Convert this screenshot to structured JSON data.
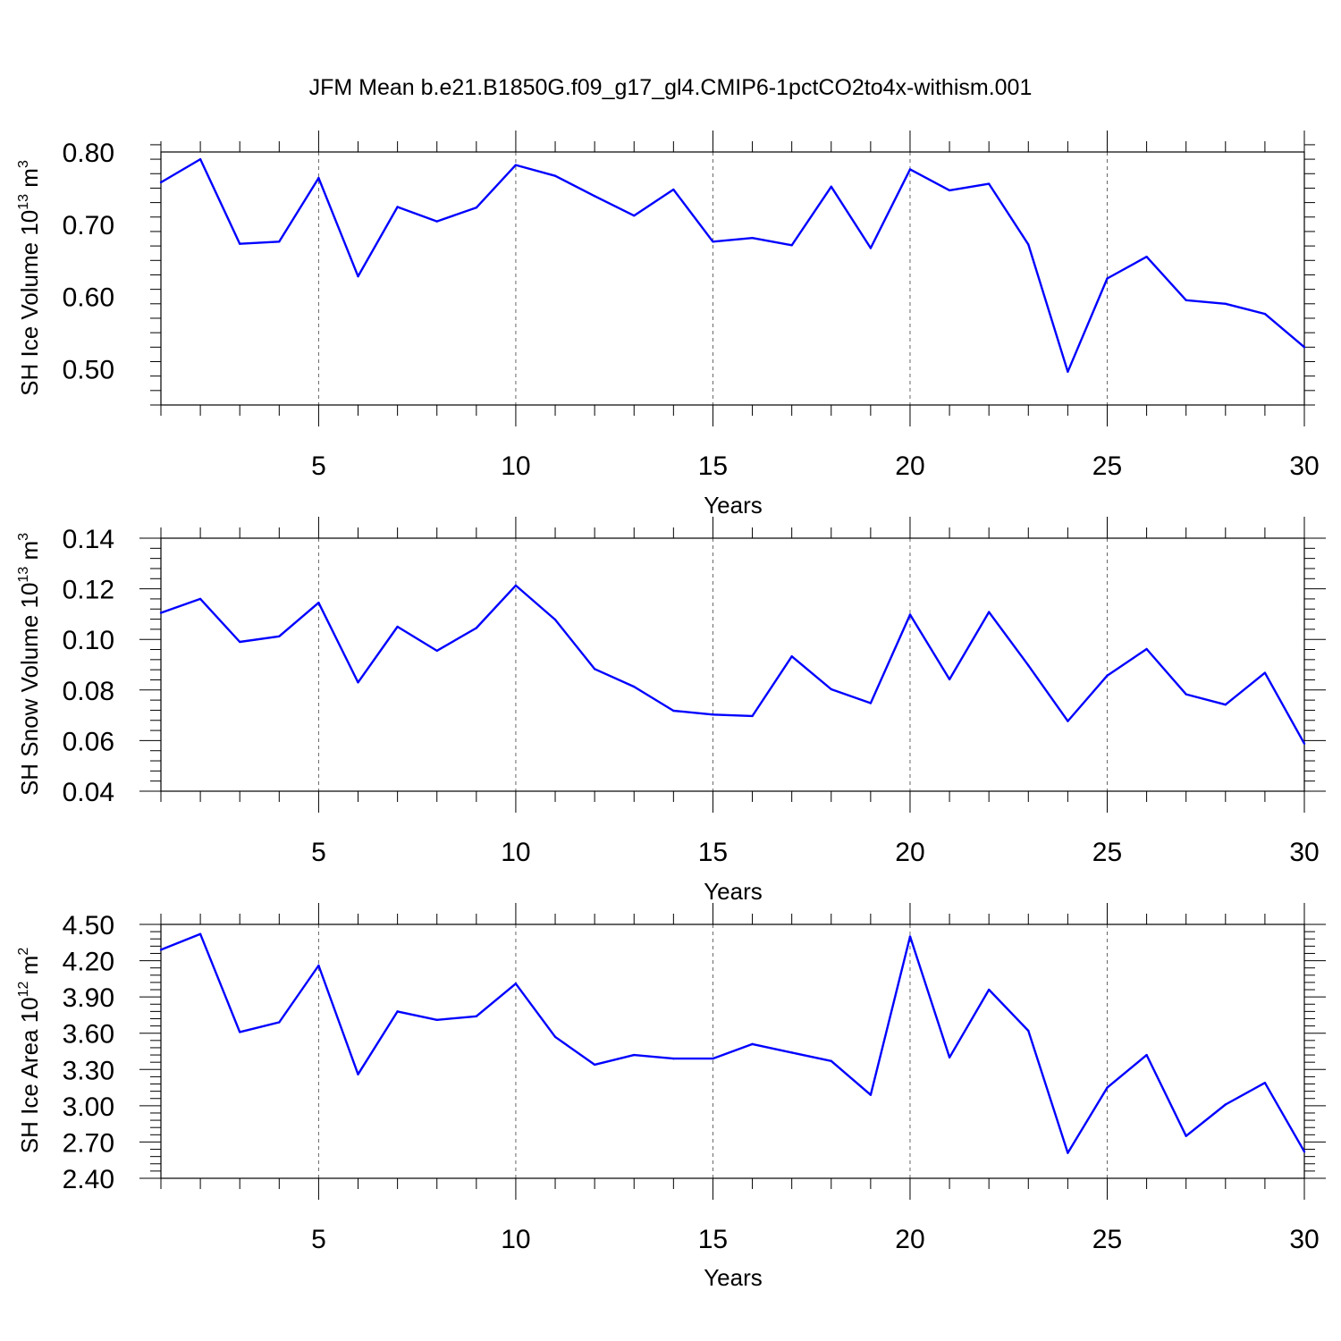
{
  "figure_title": "JFM Mean b.e21.B1850G.f09_g17_gl4.CMIP6-1pctCO2to4x-withism.001",
  "colors": {
    "line": "#0000ff",
    "axes": "#000000",
    "grid": "#000000"
  },
  "chart_data": [
    {
      "type": "line",
      "ylabel": {
        "main": "SH Ice Volume 10",
        "sup1": "13",
        "mid": " m",
        "sup2": "3"
      },
      "xlabel": "Years",
      "xlim": [
        1,
        30
      ],
      "ylim": [
        0.45,
        0.8
      ],
      "yticks": [
        0.5,
        0.6,
        0.7,
        0.8
      ],
      "ytick_labels": [
        "0.50",
        "0.60",
        "0.70",
        "0.80"
      ],
      "xticks": [
        5,
        10,
        15,
        20,
        25,
        30
      ],
      "xtick_labels": [
        "5",
        "10",
        "15",
        "20",
        "25",
        "30"
      ],
      "grid": "vertical dashed at major x ticks",
      "x": [
        1,
        2,
        3,
        4,
        5,
        6,
        7,
        8,
        9,
        10,
        11,
        12,
        13,
        14,
        15,
        16,
        17,
        18,
        19,
        20,
        21,
        22,
        23,
        24,
        25,
        26,
        27,
        28,
        29,
        30
      ],
      "values": [
        0.758,
        0.79,
        0.673,
        0.676,
        0.764,
        0.628,
        0.724,
        0.704,
        0.723,
        0.782,
        0.767,
        0.739,
        0.712,
        0.748,
        0.676,
        0.681,
        0.671,
        0.752,
        0.667,
        0.776,
        0.747,
        0.756,
        0.672,
        0.496,
        0.625,
        0.655,
        0.595,
        0.59,
        0.576,
        0.53
      ]
    },
    {
      "type": "line",
      "ylabel": {
        "main": "SH Snow Volume 10",
        "sup1": "13",
        "mid": " m",
        "sup2": "3"
      },
      "xlabel": "Years",
      "xlim": [
        1,
        30
      ],
      "ylim": [
        0.04,
        0.14
      ],
      "yticks": [
        0.04,
        0.06,
        0.08,
        0.1,
        0.12,
        0.14
      ],
      "ytick_labels": [
        "0.04",
        "0.06",
        "0.08",
        "0.10",
        "0.12",
        "0.14"
      ],
      "xticks": [
        5,
        10,
        15,
        20,
        25,
        30
      ],
      "xtick_labels": [
        "5",
        "10",
        "15",
        "20",
        "25",
        "30"
      ],
      "grid": "vertical dashed at major x ticks",
      "x": [
        1,
        2,
        3,
        4,
        5,
        6,
        7,
        8,
        9,
        10,
        11,
        12,
        13,
        14,
        15,
        16,
        17,
        18,
        19,
        20,
        21,
        22,
        23,
        24,
        25,
        26,
        27,
        28,
        29,
        30
      ],
      "values": [
        0.1105,
        0.116,
        0.099,
        0.1012,
        0.1145,
        0.083,
        0.105,
        0.0955,
        0.1045,
        0.1213,
        0.1078,
        0.0883,
        0.0813,
        0.0718,
        0.0703,
        0.0697,
        0.0933,
        0.0803,
        0.0748,
        0.1098,
        0.0842,
        0.1108,
        0.0897,
        0.0677,
        0.0857,
        0.0962,
        0.0783,
        0.0742,
        0.0868,
        0.0588
      ]
    },
    {
      "type": "line",
      "ylabel": {
        "main": "SH Ice Area 10",
        "sup1": "12",
        "mid": " m",
        "sup2": "2"
      },
      "xlabel": "Years",
      "xlim": [
        1,
        30
      ],
      "ylim": [
        2.4,
        4.5
      ],
      "yticks": [
        2.4,
        2.7,
        3.0,
        3.3,
        3.6,
        3.9,
        4.2,
        4.5
      ],
      "ytick_labels": [
        "2.40",
        "2.70",
        "3.00",
        "3.30",
        "3.60",
        "3.90",
        "4.20",
        "4.50"
      ],
      "xticks": [
        5,
        10,
        15,
        20,
        25,
        30
      ],
      "xtick_labels": [
        "5",
        "10",
        "15",
        "20",
        "25",
        "30"
      ],
      "grid": "vertical dashed at major x ticks",
      "x": [
        1,
        2,
        3,
        4,
        5,
        6,
        7,
        8,
        9,
        10,
        11,
        12,
        13,
        14,
        15,
        16,
        17,
        18,
        19,
        20,
        21,
        22,
        23,
        24,
        25,
        26,
        27,
        28,
        29,
        30
      ],
      "values": [
        4.29,
        4.42,
        3.61,
        3.69,
        4.16,
        3.26,
        3.78,
        3.71,
        3.74,
        4.01,
        3.57,
        3.34,
        3.42,
        3.39,
        3.39,
        3.51,
        3.44,
        3.37,
        3.09,
        4.4,
        3.4,
        3.96,
        3.62,
        2.61,
        3.15,
        3.42,
        2.75,
        3.01,
        3.19,
        2.62
      ]
    }
  ]
}
